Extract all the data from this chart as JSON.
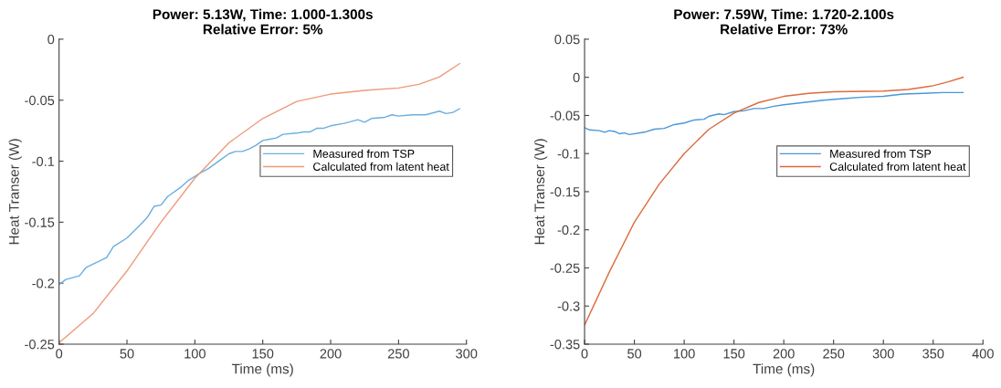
{
  "chart_data": [
    {
      "type": "line",
      "title": "Power: 5.13W, Time: 1.000-1.300s\nRelative Error: 5%",
      "xlabel": "Time (ms)",
      "ylabel": "Heat Transer (W)",
      "xlim": [
        0,
        300
      ],
      "xticks": [
        0,
        50,
        100,
        150,
        200,
        250,
        300
      ],
      "ylim": [
        -0.25,
        0
      ],
      "yticks": [
        -0.25,
        -0.2,
        -0.15,
        -0.1,
        -0.05,
        0
      ],
      "legend": "right",
      "grid": false,
      "series": [
        {
          "name": "Measured from TSP",
          "color": "#6aaee0",
          "x": [
            0,
            5,
            15,
            20,
            35,
            40,
            50,
            60,
            65,
            70,
            75,
            80,
            90,
            95,
            105,
            110,
            120,
            125,
            130,
            135,
            140,
            145,
            150,
            155,
            160,
            165,
            175,
            180,
            185,
            190,
            195,
            200,
            210,
            220,
            225,
            230,
            240,
            245,
            250,
            260,
            270,
            280,
            285,
            290,
            295
          ],
          "values": [
            -0.201,
            -0.197,
            -0.194,
            -0.187,
            -0.179,
            -0.17,
            -0.163,
            -0.152,
            -0.146,
            -0.137,
            -0.136,
            -0.129,
            -0.121,
            -0.116,
            -0.109,
            -0.106,
            -0.098,
            -0.094,
            -0.092,
            -0.092,
            -0.09,
            -0.087,
            -0.083,
            -0.082,
            -0.081,
            -0.078,
            -0.077,
            -0.076,
            -0.076,
            -0.073,
            -0.073,
            -0.071,
            -0.069,
            -0.066,
            -0.068,
            -0.065,
            -0.064,
            -0.062,
            -0.063,
            -0.062,
            -0.062,
            -0.059,
            -0.061,
            -0.06,
            -0.057
          ]
        },
        {
          "name": "Calculated from latent heat",
          "color": "#ee9a7a",
          "x": [
            0,
            25,
            50,
            75,
            100,
            125,
            150,
            175,
            200,
            225,
            250,
            265,
            280,
            295
          ],
          "values": [
            -0.249,
            -0.225,
            -0.19,
            -0.15,
            -0.114,
            -0.085,
            -0.065,
            -0.051,
            -0.045,
            -0.042,
            -0.04,
            -0.037,
            -0.031,
            -0.02
          ]
        }
      ]
    },
    {
      "type": "line",
      "title": "Power: 7.59W, Time: 1.720-2.100s\nRelative Error: 73%",
      "xlabel": "Time (ms)",
      "ylabel": "Heat Transer (W)",
      "xlim": [
        0,
        400
      ],
      "xticks": [
        0,
        50,
        100,
        150,
        200,
        250,
        300,
        350,
        400
      ],
      "ylim": [
        -0.35,
        0.05
      ],
      "yticks": [
        -0.35,
        -0.3,
        -0.25,
        -0.2,
        -0.15,
        -0.1,
        -0.05,
        0,
        0.05
      ],
      "legend": "right",
      "grid": false,
      "series": [
        {
          "name": "Measured from TSP",
          "color": "#4a97d6",
          "x": [
            0,
            5,
            15,
            20,
            25,
            30,
            35,
            40,
            45,
            60,
            70,
            80,
            90,
            100,
            110,
            120,
            125,
            135,
            140,
            150,
            160,
            170,
            180,
            190,
            200,
            220,
            240,
            260,
            280,
            300,
            320,
            340,
            360,
            380
          ],
          "values": [
            -0.066,
            -0.069,
            -0.07,
            -0.072,
            -0.07,
            -0.071,
            -0.074,
            -0.073,
            -0.075,
            -0.072,
            -0.068,
            -0.067,
            -0.062,
            -0.06,
            -0.056,
            -0.055,
            -0.051,
            -0.048,
            -0.049,
            -0.045,
            -0.044,
            -0.041,
            -0.041,
            -0.038,
            -0.036,
            -0.033,
            -0.03,
            -0.028,
            -0.026,
            -0.025,
            -0.022,
            -0.021,
            -0.02,
            -0.02
          ]
        },
        {
          "name": "Calculated from latent heat",
          "color": "#dd6a3c",
          "x": [
            0,
            25,
            50,
            75,
            100,
            125,
            150,
            175,
            200,
            225,
            250,
            300,
            325,
            350,
            365,
            380
          ],
          "values": [
            -0.325,
            -0.255,
            -0.19,
            -0.14,
            -0.1,
            -0.068,
            -0.047,
            -0.033,
            -0.025,
            -0.021,
            -0.019,
            -0.018,
            -0.016,
            -0.011,
            -0.006,
            0.0
          ]
        }
      ]
    }
  ]
}
